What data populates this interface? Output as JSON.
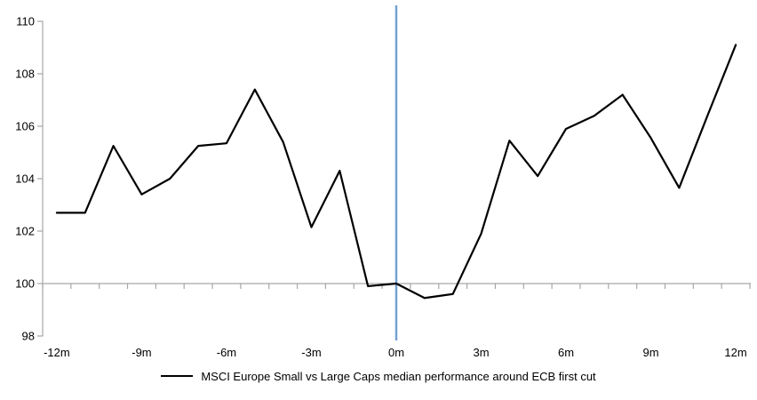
{
  "chart_data": {
    "type": "line",
    "title": "",
    "x": [
      -12,
      -11,
      -10,
      -9,
      -8,
      -7,
      -6,
      -5,
      -4,
      -3,
      -2,
      -1,
      0,
      1,
      2,
      3,
      4,
      5,
      6,
      7,
      8,
      9,
      10,
      11,
      12
    ],
    "series": [
      {
        "name": "MSCI Europe Small vs Large Caps median performance around ECB first cut",
        "color": "#000000",
        "values": [
          102.7,
          102.7,
          105.25,
          103.4,
          104.0,
          105.25,
          105.35,
          107.4,
          105.4,
          102.15,
          104.3,
          99.9,
          100.0,
          99.45,
          99.6,
          101.9,
          105.45,
          104.1,
          105.9,
          106.4,
          107.2,
          105.55,
          103.65,
          106.4,
          109.1
        ]
      }
    ],
    "xlabel": "",
    "ylabel": "",
    "ylim": [
      98,
      110
    ],
    "yticks": [
      98,
      100,
      102,
      104,
      106,
      108,
      110
    ],
    "xtick_labels": [
      "-12m",
      "-9m",
      "-6m",
      "-3m",
      "0m",
      "3m",
      "6m",
      "9m",
      "12m"
    ],
    "xtick_positions": [
      -12,
      -9,
      -6,
      -3,
      0,
      3,
      6,
      9,
      12
    ],
    "axis_crosses_at": 100,
    "event_line": {
      "x": 0,
      "color": "#74A2D2"
    },
    "axis_color": "#A6A6A6",
    "grid": false,
    "legend_position": "bottom"
  }
}
